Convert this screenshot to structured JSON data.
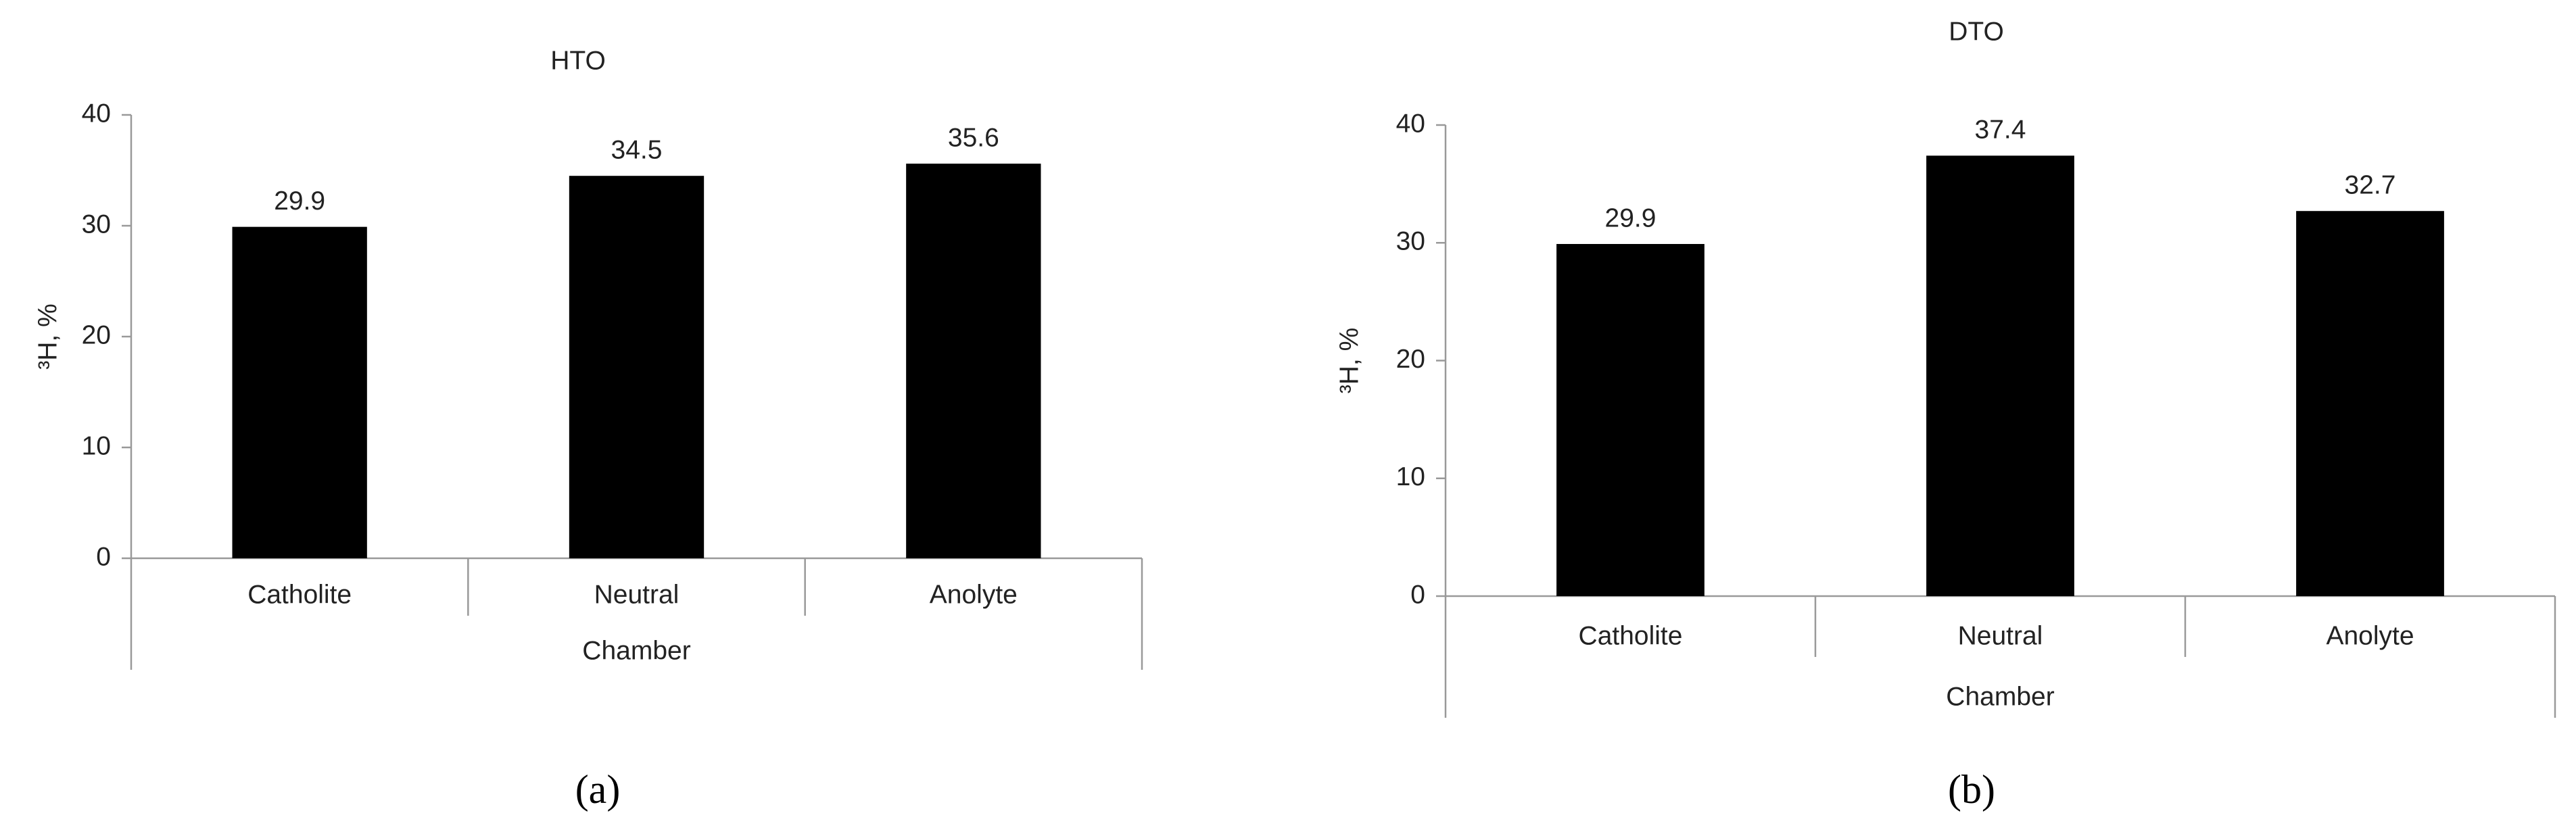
{
  "chart_data": [
    {
      "type": "bar",
      "title": "HTO",
      "panel_label": "(a)",
      "y_label": "³H, %",
      "x_label": "Chamber",
      "categories": [
        "Catholite",
        "Neutral",
        "Anolyte"
      ],
      "values": [
        29.9,
        34.5,
        35.6
      ],
      "color": "#000000",
      "ylim": [
        0,
        40
      ],
      "yticks": [
        0,
        10,
        20,
        30,
        40
      ],
      "grid": false
    },
    {
      "type": "bar",
      "title": "DTO",
      "panel_label": "(b)",
      "y_label": "³H, %",
      "x_label": "Chamber",
      "categories": [
        "Catholite",
        "Neutral",
        "Anolyte"
      ],
      "values": [
        29.9,
        37.4,
        32.7
      ],
      "color": "#000000",
      "ylim": [
        0,
        40
      ],
      "yticks": [
        0,
        10,
        20,
        30,
        40
      ],
      "grid": false
    }
  ]
}
